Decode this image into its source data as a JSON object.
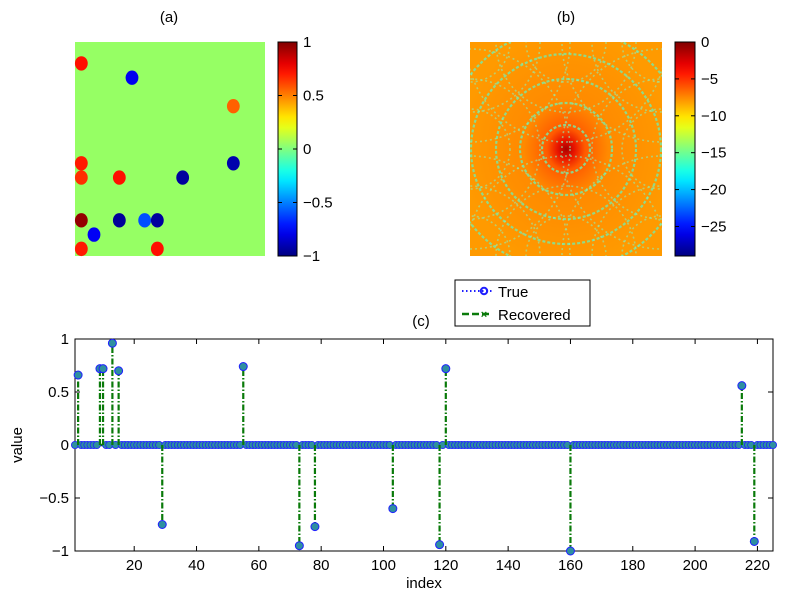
{
  "chart_data": [
    {
      "type": "heatmap",
      "title": "(a)",
      "clim": [
        -1,
        1
      ],
      "colorbar_ticks": [
        "1",
        "0.5",
        "0",
        "−0.5",
        "−1"
      ],
      "colorbar_tick_values": [
        1,
        0.5,
        0,
        -0.5,
        -1
      ],
      "grid_size": [
        15,
        15
      ],
      "background_value": 0,
      "spots": [
        {
          "col": 1,
          "row": 2,
          "value": 0.72
        },
        {
          "col": 5,
          "row": 3,
          "value": -0.78
        },
        {
          "col": 13,
          "row": 5,
          "value": 0.56
        },
        {
          "col": 13,
          "row": 9,
          "value": -0.91
        },
        {
          "col": 1,
          "row": 9,
          "value": 0.7
        },
        {
          "col": 1,
          "row": 10,
          "value": 0.66
        },
        {
          "col": 4,
          "row": 10,
          "value": 0.72
        },
        {
          "col": 9,
          "row": 10,
          "value": -0.94
        },
        {
          "col": 1,
          "row": 13,
          "value": 0.96
        },
        {
          "col": 4,
          "row": 13,
          "value": -0.95
        },
        {
          "col": 6,
          "row": 13,
          "value": -0.6
        },
        {
          "col": 7,
          "row": 13,
          "value": -0.94
        },
        {
          "col": 2,
          "row": 14,
          "value": -0.77
        },
        {
          "col": 1,
          "row": 15,
          "value": 0.7
        },
        {
          "col": 7,
          "row": 15,
          "value": 0.72
        }
      ]
    },
    {
      "type": "heatmap",
      "title": "(b)",
      "clim": [
        -29,
        0
      ],
      "colorbar_ticks": [
        "0",
        "−5",
        "−10",
        "−15",
        "−20",
        "−25"
      ],
      "colorbar_tick_values": [
        0,
        -5,
        -10,
        -15,
        -20,
        -25
      ]
    },
    {
      "type": "line",
      "title": "(c)",
      "xlabel": "index",
      "ylabel": "value",
      "xlim": [
        1,
        225
      ],
      "ylim": [
        -1,
        1
      ],
      "xticks": [
        20,
        40,
        60,
        80,
        100,
        120,
        140,
        160,
        180,
        200,
        220
      ],
      "yticks": [
        1,
        0.5,
        0,
        -0.5,
        -1
      ],
      "ytick_labels": [
        "1",
        "0.5",
        "0",
        "−0.5",
        "−1"
      ],
      "legend_position": "top-center",
      "n_points": 225,
      "series": [
        {
          "name": "True",
          "color": "#1f1fff",
          "style": "dotted",
          "marker": "circle"
        },
        {
          "name": "Recovered",
          "color": "#0a7a0a",
          "style": "dash-dot",
          "marker": "x"
        }
      ],
      "nonzero": [
        {
          "x": 2,
          "y": 0.66
        },
        {
          "x": 9,
          "y": 0.72
        },
        {
          "x": 10,
          "y": 0.72
        },
        {
          "x": 13,
          "y": 0.96
        },
        {
          "x": 15,
          "y": 0.7
        },
        {
          "x": 29,
          "y": -0.75
        },
        {
          "x": 55,
          "y": 0.74
        },
        {
          "x": 73,
          "y": -0.95
        },
        {
          "x": 78,
          "y": -0.77
        },
        {
          "x": 103,
          "y": -0.6
        },
        {
          "x": 118,
          "y": -0.94
        },
        {
          "x": 120,
          "y": 0.72
        },
        {
          "x": 160,
          "y": -1.0
        },
        {
          "x": 215,
          "y": 0.56
        },
        {
          "x": 219,
          "y": -0.91
        }
      ]
    }
  ]
}
